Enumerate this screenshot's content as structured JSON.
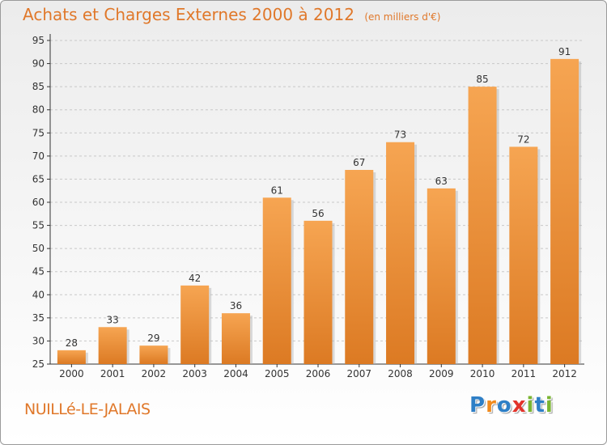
{
  "title": "Achats et Charges Externes 2000 à 2012",
  "unit": "(en milliers d'€)",
  "place": "NUILLé-LE-JALAIS",
  "logo": {
    "text": "Proxiti",
    "letters": [
      {
        "ch": "P",
        "color": "#2e7fc6"
      },
      {
        "ch": "r",
        "color": "#f08a1c"
      },
      {
        "ch": "o",
        "color": "#2e7fc6"
      },
      {
        "ch": "x",
        "color": "#e2332b"
      },
      {
        "ch": "i",
        "color": "#7ab532"
      },
      {
        "ch": "t",
        "color": "#2e7fc6"
      },
      {
        "ch": "i",
        "color": "#7ab532"
      }
    ]
  },
  "colors": {
    "bar_top": "#f6a552",
    "bar_bottom": "#dc7a23",
    "title": "#e0782a",
    "grid": "#c8c8c8",
    "axis": "#333333"
  },
  "chart_data": {
    "type": "bar",
    "categories": [
      "2000",
      "2001",
      "2002",
      "2003",
      "2004",
      "2005",
      "2006",
      "2007",
      "2008",
      "2009",
      "2010",
      "2011",
      "2012"
    ],
    "values": [
      28,
      33,
      29,
      42,
      36,
      61,
      56,
      67,
      73,
      63,
      85,
      72,
      91
    ],
    "ylim": [
      25,
      95
    ],
    "yticks": [
      25,
      30,
      35,
      40,
      45,
      50,
      55,
      60,
      65,
      70,
      75,
      80,
      85,
      90,
      95
    ],
    "grid": true,
    "data_labels": true
  }
}
